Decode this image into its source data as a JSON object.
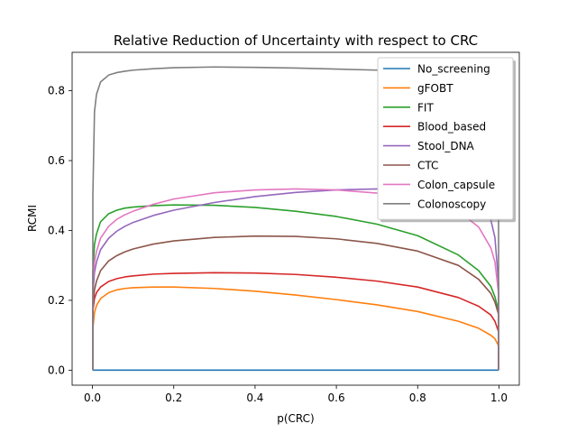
{
  "chart_data": {
    "type": "line",
    "title": "Relative Reduction of Uncertainty with respect to CRC",
    "xlabel": "p(CRC)",
    "ylabel": "RCMI",
    "xlim": [
      -0.05,
      1.05
    ],
    "ylim": [
      -0.043,
      0.91
    ],
    "xticks": [
      0.0,
      0.2,
      0.4,
      0.6,
      0.8,
      1.0
    ],
    "xtick_labels": [
      "0.0",
      "0.2",
      "0.4",
      "0.6",
      "0.8",
      "1.0"
    ],
    "yticks": [
      0.0,
      0.2,
      0.4,
      0.6,
      0.8
    ],
    "ytick_labels": [
      "0.0",
      "0.2",
      "0.4",
      "0.6",
      "0.8"
    ],
    "grid": false,
    "legend_position": "top-right",
    "x": [
      0.001,
      0.005,
      0.01,
      0.02,
      0.04,
      0.06,
      0.08,
      0.1,
      0.15,
      0.2,
      0.3,
      0.4,
      0.5,
      0.6,
      0.7,
      0.8,
      0.9,
      0.95,
      0.98,
      0.99,
      0.999
    ],
    "series": [
      {
        "name": "No_screening",
        "color": "#1f77b4",
        "values": [
          0.0,
          0.0,
          0.0,
          0.0,
          0.0,
          0.0,
          0.0,
          0.0,
          0.0,
          0.0,
          0.0,
          0.0,
          0.0,
          0.0,
          0.0,
          0.0,
          0.0,
          0.0,
          0.0,
          0.0,
          0.0
        ]
      },
      {
        "name": "gFOBT",
        "color": "#ff7f0e",
        "values": [
          0.12,
          0.165,
          0.185,
          0.205,
          0.222,
          0.23,
          0.234,
          0.236,
          0.238,
          0.238,
          0.234,
          0.226,
          0.215,
          0.202,
          0.187,
          0.168,
          0.14,
          0.12,
          0.1,
          0.09,
          0.07
        ]
      },
      {
        "name": "FIT",
        "color": "#2ca02c",
        "values": [
          0.28,
          0.36,
          0.39,
          0.425,
          0.448,
          0.458,
          0.464,
          0.467,
          0.471,
          0.473,
          0.472,
          0.466,
          0.455,
          0.44,
          0.418,
          0.385,
          0.33,
          0.285,
          0.24,
          0.21,
          0.17
        ]
      },
      {
        "name": "Blood_based",
        "color": "#d62728",
        "values": [
          0.17,
          0.205,
          0.222,
          0.238,
          0.254,
          0.262,
          0.267,
          0.27,
          0.275,
          0.277,
          0.279,
          0.278,
          0.274,
          0.266,
          0.255,
          0.238,
          0.208,
          0.183,
          0.158,
          0.14,
          0.11
        ]
      },
      {
        "name": "Stool_DNA",
        "color": "#9467bd",
        "values": [
          0.22,
          0.28,
          0.31,
          0.345,
          0.378,
          0.398,
          0.412,
          0.423,
          0.443,
          0.458,
          0.48,
          0.497,
          0.509,
          0.516,
          0.519,
          0.516,
          0.499,
          0.475,
          0.43,
          0.38,
          0.25
        ]
      },
      {
        "name": "CTC",
        "color": "#8c564b",
        "values": [
          0.18,
          0.23,
          0.255,
          0.285,
          0.313,
          0.328,
          0.339,
          0.347,
          0.361,
          0.37,
          0.38,
          0.384,
          0.383,
          0.376,
          0.363,
          0.341,
          0.3,
          0.26,
          0.22,
          0.195,
          0.16
        ]
      },
      {
        "name": "Colon_capsule",
        "color": "#e377c2",
        "values": [
          0.25,
          0.31,
          0.34,
          0.378,
          0.412,
          0.432,
          0.445,
          0.455,
          0.475,
          0.49,
          0.508,
          0.516,
          0.519,
          0.516,
          0.507,
          0.49,
          0.455,
          0.41,
          0.35,
          0.31,
          0.22
        ]
      },
      {
        "name": "Colonoscopy",
        "color": "#7f7f7f",
        "values": [
          0.5,
          0.74,
          0.79,
          0.825,
          0.845,
          0.852,
          0.856,
          0.859,
          0.863,
          0.866,
          0.868,
          0.867,
          0.865,
          0.862,
          0.859,
          0.856,
          0.853,
          0.853,
          0.855,
          0.857,
          0.86
        ]
      }
    ]
  }
}
